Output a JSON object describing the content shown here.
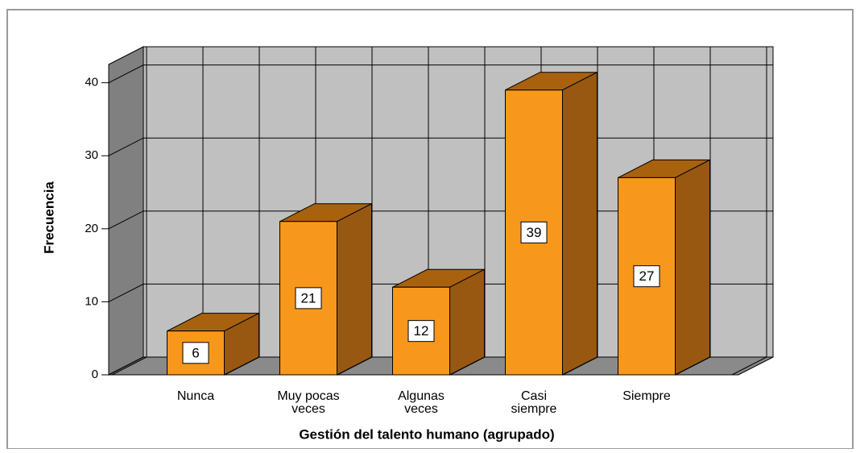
{
  "chart_data": {
    "type": "bar3d",
    "y_label": "Frecuencia",
    "x_label": "Gestión del talento humano (agrupado)",
    "categories": [
      "Nunca",
      "Muy pocas veces",
      "Algunas veces",
      "Casi siempre",
      "Siempre"
    ],
    "values": [
      6,
      21,
      12,
      39,
      27
    ],
    "color": "#f7981d",
    "ylim": [
      0,
      42.5
    ],
    "yticks": [
      0,
      10,
      20,
      30,
      40
    ],
    "grid": true
  }
}
